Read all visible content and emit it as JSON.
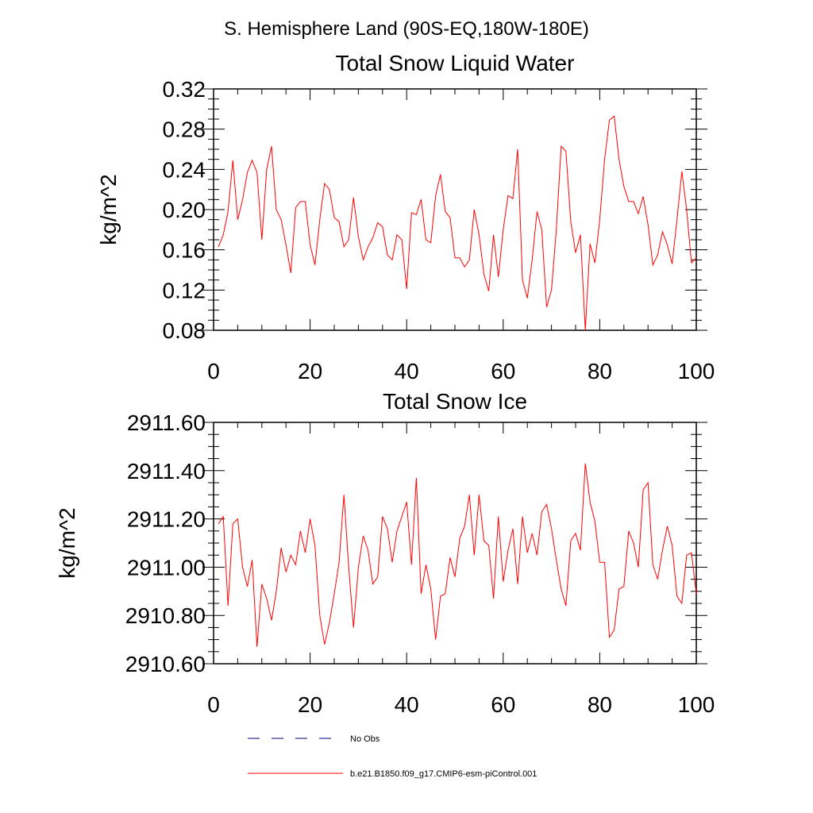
{
  "page_title": "S. Hemisphere Land (90S-EQ,180W-180E)",
  "colors": {
    "series": "#ff0000",
    "no_obs": "#000080",
    "axis": "#000000"
  },
  "legend": {
    "placement": "bottom-left",
    "items": [
      {
        "label": "No Obs",
        "color": "#000080",
        "dash": true
      },
      {
        "label": "b.e21.B1850.f09_g17.CMIP6-esm-piControl.001",
        "color": "#ff0000",
        "dash": false
      }
    ]
  },
  "chart_data": [
    {
      "type": "line",
      "title": "Total Snow Liquid Water",
      "xlabel": "",
      "ylabel": "kg/m^2",
      "xlim": [
        0,
        100
      ],
      "ylim": [
        0.08,
        0.32
      ],
      "xticks": [
        "0",
        "20",
        "40",
        "60",
        "80",
        "100"
      ],
      "yticks": [
        "0.08",
        "0.12",
        "0.16",
        "0.20",
        "0.24",
        "0.28",
        "0.32"
      ],
      "grid": false,
      "series": [
        {
          "name": "b.e21.B1850.f09_g17.CMIP6-esm-piControl.001",
          "x": [
            1,
            2,
            3,
            4,
            5,
            6,
            7,
            8,
            9,
            10,
            11,
            12,
            13,
            14,
            15,
            16,
            17,
            18,
            19,
            20,
            21,
            22,
            23,
            24,
            25,
            26,
            27,
            28,
            29,
            30,
            31,
            32,
            33,
            34,
            35,
            36,
            37,
            38,
            39,
            40,
            41,
            42,
            43,
            44,
            45,
            46,
            47,
            48,
            49,
            50,
            51,
            52,
            53,
            54,
            55,
            56,
            57,
            58,
            59,
            60,
            61,
            62,
            63,
            64,
            65,
            66,
            67,
            68,
            69,
            70,
            71,
            72,
            73,
            74,
            75,
            76,
            77,
            78,
            79,
            80,
            81,
            82,
            83,
            84,
            85,
            86,
            87,
            88,
            89,
            90,
            91,
            92,
            93,
            94,
            95,
            96,
            97,
            98,
            99,
            100
          ],
          "values": [
            0.163,
            0.175,
            0.198,
            0.249,
            0.19,
            0.21,
            0.237,
            0.249,
            0.237,
            0.17,
            0.24,
            0.263,
            0.2,
            0.19,
            0.165,
            0.137,
            0.202,
            0.208,
            0.208,
            0.165,
            0.145,
            0.19,
            0.226,
            0.22,
            0.192,
            0.188,
            0.163,
            0.17,
            0.212,
            0.173,
            0.15,
            0.163,
            0.172,
            0.187,
            0.183,
            0.155,
            0.15,
            0.175,
            0.17,
            0.121,
            0.197,
            0.195,
            0.21,
            0.17,
            0.167,
            0.214,
            0.235,
            0.198,
            0.192,
            0.152,
            0.152,
            0.143,
            0.15,
            0.2,
            0.175,
            0.136,
            0.119,
            0.175,
            0.133,
            0.18,
            0.214,
            0.211,
            0.26,
            0.13,
            0.112,
            0.15,
            0.198,
            0.18,
            0.103,
            0.12,
            0.18,
            0.263,
            0.258,
            0.188,
            0.157,
            0.175,
            0.08,
            0.166,
            0.147,
            0.19,
            0.25,
            0.289,
            0.293,
            0.25,
            0.223,
            0.208,
            0.208,
            0.196,
            0.213,
            0.185,
            0.145,
            0.155,
            0.178,
            0.165,
            0.146,
            0.19,
            0.238,
            0.2,
            0.147,
            0.152
          ]
        }
      ]
    },
    {
      "type": "line",
      "title": "Total Snow Ice",
      "xlabel": "",
      "ylabel": "kg/m^2",
      "xlim": [
        0,
        100
      ],
      "ylim": [
        2910.6,
        2911.6
      ],
      "xticks": [
        "0",
        "20",
        "40",
        "60",
        "80",
        "100"
      ],
      "yticks": [
        "2910.60",
        "2910.80",
        "2911.00",
        "2911.20",
        "2911.40",
        "2911.60"
      ],
      "grid": false,
      "series": [
        {
          "name": "b.e21.B1850.f09_g17.CMIP6-esm-piControl.001",
          "x": [
            1,
            2,
            3,
            4,
            5,
            6,
            7,
            8,
            9,
            10,
            11,
            12,
            13,
            14,
            15,
            16,
            17,
            18,
            19,
            20,
            21,
            22,
            23,
            24,
            25,
            26,
            27,
            28,
            29,
            30,
            31,
            32,
            33,
            34,
            35,
            36,
            37,
            38,
            39,
            40,
            41,
            42,
            43,
            44,
            45,
            46,
            47,
            48,
            49,
            50,
            51,
            52,
            53,
            54,
            55,
            56,
            57,
            58,
            59,
            60,
            61,
            62,
            63,
            64,
            65,
            66,
            67,
            68,
            69,
            70,
            71,
            72,
            73,
            74,
            75,
            76,
            77,
            78,
            79,
            80,
            81,
            82,
            83,
            84,
            85,
            86,
            87,
            88,
            89,
            90,
            91,
            92,
            93,
            94,
            95,
            96,
            97,
            98,
            99,
            100
          ],
          "values": [
            2911.18,
            2911.21,
            2910.84,
            2911.18,
            2911.2,
            2911.0,
            2910.92,
            2911.03,
            2910.67,
            2910.93,
            2910.87,
            2910.78,
            2910.9,
            2911.08,
            2910.98,
            2911.05,
            2911.01,
            2911.15,
            2911.06,
            2911.2,
            2911.09,
            2910.8,
            2910.68,
            2910.77,
            2910.89,
            2911.02,
            2911.3,
            2911.0,
            2910.75,
            2911.0,
            2911.13,
            2911.07,
            2910.93,
            2910.96,
            2911.21,
            2911.16,
            2911.02,
            2911.15,
            2911.21,
            2911.27,
            2911.01,
            2911.37,
            2910.89,
            2911.01,
            2910.91,
            2910.7,
            2910.88,
            2910.89,
            2911.04,
            2910.96,
            2911.12,
            2911.17,
            2911.3,
            2911.05,
            2911.3,
            2911.11,
            2911.09,
            2910.87,
            2911.21,
            2910.94,
            2911.07,
            2911.16,
            2910.93,
            2911.21,
            2911.06,
            2911.14,
            2911.05,
            2911.23,
            2911.26,
            2911.16,
            2911.03,
            2910.91,
            2910.84,
            2911.11,
            2911.14,
            2911.07,
            2911.43,
            2911.27,
            2911.19,
            2911.02,
            2911.02,
            2910.71,
            2910.74,
            2910.91,
            2910.92,
            2911.15,
            2911.1,
            2911.0,
            2911.32,
            2911.35,
            2911.01,
            2910.95,
            2911.07,
            2911.17,
            2911.09,
            2910.88,
            2910.85,
            2911.05,
            2911.06,
            2910.89
          ]
        }
      ]
    }
  ]
}
